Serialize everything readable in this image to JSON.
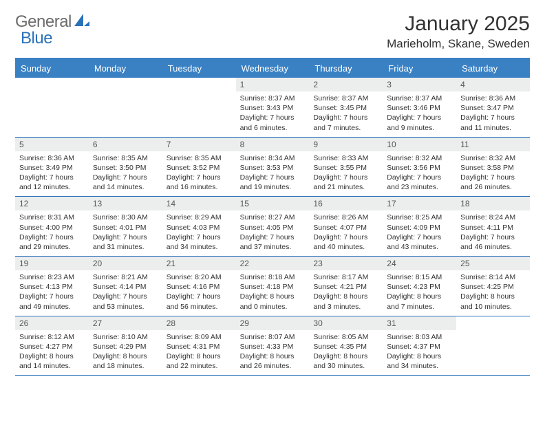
{
  "brand": {
    "part1": "General",
    "part2": "Blue"
  },
  "title": {
    "month": "January 2025",
    "location": "Marieholm, Skane, Sweden"
  },
  "colors": {
    "brand_gray": "#6b6b6b",
    "brand_blue": "#2b71b8",
    "header_blue": "#3a81c4",
    "row_divider": "#2b71b8",
    "datenum_bg": "#eceeee",
    "text": "#333333",
    "background": "#ffffff"
  },
  "calendar": {
    "type": "table",
    "weekday_fontsize": 13,
    "datenum_fontsize": 12,
    "body_fontsize": 10.5,
    "weekdays": [
      "Sunday",
      "Monday",
      "Tuesday",
      "Wednesday",
      "Thursday",
      "Friday",
      "Saturday"
    ],
    "weeks": [
      [
        {
          "date": "",
          "sunrise": "",
          "sunset": "",
          "daylight": ""
        },
        {
          "date": "",
          "sunrise": "",
          "sunset": "",
          "daylight": ""
        },
        {
          "date": "",
          "sunrise": "",
          "sunset": "",
          "daylight": ""
        },
        {
          "date": "1",
          "sunrise": "Sunrise: 8:37 AM",
          "sunset": "Sunset: 3:43 PM",
          "daylight": "Daylight: 7 hours and 6 minutes."
        },
        {
          "date": "2",
          "sunrise": "Sunrise: 8:37 AM",
          "sunset": "Sunset: 3:45 PM",
          "daylight": "Daylight: 7 hours and 7 minutes."
        },
        {
          "date": "3",
          "sunrise": "Sunrise: 8:37 AM",
          "sunset": "Sunset: 3:46 PM",
          "daylight": "Daylight: 7 hours and 9 minutes."
        },
        {
          "date": "4",
          "sunrise": "Sunrise: 8:36 AM",
          "sunset": "Sunset: 3:47 PM",
          "daylight": "Daylight: 7 hours and 11 minutes."
        }
      ],
      [
        {
          "date": "5",
          "sunrise": "Sunrise: 8:36 AM",
          "sunset": "Sunset: 3:49 PM",
          "daylight": "Daylight: 7 hours and 12 minutes."
        },
        {
          "date": "6",
          "sunrise": "Sunrise: 8:35 AM",
          "sunset": "Sunset: 3:50 PM",
          "daylight": "Daylight: 7 hours and 14 minutes."
        },
        {
          "date": "7",
          "sunrise": "Sunrise: 8:35 AM",
          "sunset": "Sunset: 3:52 PM",
          "daylight": "Daylight: 7 hours and 16 minutes."
        },
        {
          "date": "8",
          "sunrise": "Sunrise: 8:34 AM",
          "sunset": "Sunset: 3:53 PM",
          "daylight": "Daylight: 7 hours and 19 minutes."
        },
        {
          "date": "9",
          "sunrise": "Sunrise: 8:33 AM",
          "sunset": "Sunset: 3:55 PM",
          "daylight": "Daylight: 7 hours and 21 minutes."
        },
        {
          "date": "10",
          "sunrise": "Sunrise: 8:32 AM",
          "sunset": "Sunset: 3:56 PM",
          "daylight": "Daylight: 7 hours and 23 minutes."
        },
        {
          "date": "11",
          "sunrise": "Sunrise: 8:32 AM",
          "sunset": "Sunset: 3:58 PM",
          "daylight": "Daylight: 7 hours and 26 minutes."
        }
      ],
      [
        {
          "date": "12",
          "sunrise": "Sunrise: 8:31 AM",
          "sunset": "Sunset: 4:00 PM",
          "daylight": "Daylight: 7 hours and 29 minutes."
        },
        {
          "date": "13",
          "sunrise": "Sunrise: 8:30 AM",
          "sunset": "Sunset: 4:01 PM",
          "daylight": "Daylight: 7 hours and 31 minutes."
        },
        {
          "date": "14",
          "sunrise": "Sunrise: 8:29 AM",
          "sunset": "Sunset: 4:03 PM",
          "daylight": "Daylight: 7 hours and 34 minutes."
        },
        {
          "date": "15",
          "sunrise": "Sunrise: 8:27 AM",
          "sunset": "Sunset: 4:05 PM",
          "daylight": "Daylight: 7 hours and 37 minutes."
        },
        {
          "date": "16",
          "sunrise": "Sunrise: 8:26 AM",
          "sunset": "Sunset: 4:07 PM",
          "daylight": "Daylight: 7 hours and 40 minutes."
        },
        {
          "date": "17",
          "sunrise": "Sunrise: 8:25 AM",
          "sunset": "Sunset: 4:09 PM",
          "daylight": "Daylight: 7 hours and 43 minutes."
        },
        {
          "date": "18",
          "sunrise": "Sunrise: 8:24 AM",
          "sunset": "Sunset: 4:11 PM",
          "daylight": "Daylight: 7 hours and 46 minutes."
        }
      ],
      [
        {
          "date": "19",
          "sunrise": "Sunrise: 8:23 AM",
          "sunset": "Sunset: 4:13 PM",
          "daylight": "Daylight: 7 hours and 49 minutes."
        },
        {
          "date": "20",
          "sunrise": "Sunrise: 8:21 AM",
          "sunset": "Sunset: 4:14 PM",
          "daylight": "Daylight: 7 hours and 53 minutes."
        },
        {
          "date": "21",
          "sunrise": "Sunrise: 8:20 AM",
          "sunset": "Sunset: 4:16 PM",
          "daylight": "Daylight: 7 hours and 56 minutes."
        },
        {
          "date": "22",
          "sunrise": "Sunrise: 8:18 AM",
          "sunset": "Sunset: 4:18 PM",
          "daylight": "Daylight: 8 hours and 0 minutes."
        },
        {
          "date": "23",
          "sunrise": "Sunrise: 8:17 AM",
          "sunset": "Sunset: 4:21 PM",
          "daylight": "Daylight: 8 hours and 3 minutes."
        },
        {
          "date": "24",
          "sunrise": "Sunrise: 8:15 AM",
          "sunset": "Sunset: 4:23 PM",
          "daylight": "Daylight: 8 hours and 7 minutes."
        },
        {
          "date": "25",
          "sunrise": "Sunrise: 8:14 AM",
          "sunset": "Sunset: 4:25 PM",
          "daylight": "Daylight: 8 hours and 10 minutes."
        }
      ],
      [
        {
          "date": "26",
          "sunrise": "Sunrise: 8:12 AM",
          "sunset": "Sunset: 4:27 PM",
          "daylight": "Daylight: 8 hours and 14 minutes."
        },
        {
          "date": "27",
          "sunrise": "Sunrise: 8:10 AM",
          "sunset": "Sunset: 4:29 PM",
          "daylight": "Daylight: 8 hours and 18 minutes."
        },
        {
          "date": "28",
          "sunrise": "Sunrise: 8:09 AM",
          "sunset": "Sunset: 4:31 PM",
          "daylight": "Daylight: 8 hours and 22 minutes."
        },
        {
          "date": "29",
          "sunrise": "Sunrise: 8:07 AM",
          "sunset": "Sunset: 4:33 PM",
          "daylight": "Daylight: 8 hours and 26 minutes."
        },
        {
          "date": "30",
          "sunrise": "Sunrise: 8:05 AM",
          "sunset": "Sunset: 4:35 PM",
          "daylight": "Daylight: 8 hours and 30 minutes."
        },
        {
          "date": "31",
          "sunrise": "Sunrise: 8:03 AM",
          "sunset": "Sunset: 4:37 PM",
          "daylight": "Daylight: 8 hours and 34 minutes."
        },
        {
          "date": "",
          "sunrise": "",
          "sunset": "",
          "daylight": ""
        }
      ]
    ]
  }
}
